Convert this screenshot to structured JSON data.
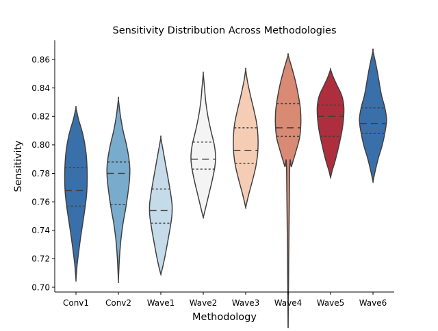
{
  "chart_data": {
    "type": "violin",
    "title": "Sensitivity Distribution Across Methodologies",
    "xlabel": "Methodology",
    "ylabel": "Sensitivity",
    "ylim": [
      0.696,
      0.873
    ],
    "yticks": [
      0.7,
      0.72,
      0.74,
      0.76,
      0.78,
      0.8,
      0.82,
      0.84,
      0.86
    ],
    "ytick_labels": [
      "0.70",
      "0.72",
      "0.74",
      "0.76",
      "0.78",
      "0.80",
      "0.82",
      "0.84",
      "0.86"
    ],
    "categories": [
      "Conv1",
      "Conv2",
      "Wave1",
      "Wave2",
      "Wave3",
      "Wave4",
      "Wave5",
      "Wave6"
    ],
    "grid": false,
    "inner": "quartile",
    "series": [
      {
        "category": "Conv1",
        "color": "#3a70aa",
        "min": 0.705,
        "max": 0.826,
        "q1": 0.757,
        "median": 0.768,
        "q3": 0.784,
        "profile": [
          [
            0.705,
            0.0
          ],
          [
            0.715,
            0.05
          ],
          [
            0.725,
            0.13
          ],
          [
            0.735,
            0.22
          ],
          [
            0.745,
            0.32
          ],
          [
            0.755,
            0.42
          ],
          [
            0.765,
            0.5
          ],
          [
            0.775,
            0.53
          ],
          [
            0.785,
            0.52
          ],
          [
            0.795,
            0.47
          ],
          [
            0.805,
            0.36
          ],
          [
            0.812,
            0.24
          ],
          [
            0.818,
            0.12
          ],
          [
            0.826,
            0.0
          ]
        ]
      },
      {
        "category": "Conv2",
        "color": "#79abcd",
        "min": 0.704,
        "max": 0.832,
        "q1": 0.758,
        "median": 0.78,
        "q3": 0.788,
        "profile": [
          [
            0.704,
            0.0
          ],
          [
            0.715,
            0.03
          ],
          [
            0.725,
            0.07
          ],
          [
            0.735,
            0.13
          ],
          [
            0.745,
            0.22
          ],
          [
            0.755,
            0.34
          ],
          [
            0.765,
            0.44
          ],
          [
            0.775,
            0.52
          ],
          [
            0.783,
            0.54
          ],
          [
            0.79,
            0.5
          ],
          [
            0.8,
            0.38
          ],
          [
            0.81,
            0.22
          ],
          [
            0.82,
            0.1
          ],
          [
            0.832,
            0.0
          ]
        ]
      },
      {
        "category": "Wave1",
        "color": "#c5dbe9",
        "min": 0.709,
        "max": 0.805,
        "q1": 0.745,
        "median": 0.754,
        "q3": 0.769,
        "profile": [
          [
            0.709,
            0.0
          ],
          [
            0.715,
            0.1
          ],
          [
            0.722,
            0.2
          ],
          [
            0.73,
            0.3
          ],
          [
            0.74,
            0.42
          ],
          [
            0.75,
            0.52
          ],
          [
            0.758,
            0.53
          ],
          [
            0.766,
            0.46
          ],
          [
            0.775,
            0.36
          ],
          [
            0.785,
            0.24
          ],
          [
            0.795,
            0.12
          ],
          [
            0.805,
            0.0
          ]
        ]
      },
      {
        "category": "Wave2",
        "color": "#f4f4f4",
        "min": 0.749,
        "max": 0.85,
        "q1": 0.783,
        "median": 0.79,
        "q3": 0.802,
        "profile": [
          [
            0.749,
            0.0
          ],
          [
            0.755,
            0.1
          ],
          [
            0.765,
            0.26
          ],
          [
            0.775,
            0.42
          ],
          [
            0.785,
            0.55
          ],
          [
            0.792,
            0.58
          ],
          [
            0.8,
            0.52
          ],
          [
            0.81,
            0.36
          ],
          [
            0.82,
            0.22
          ],
          [
            0.83,
            0.12
          ],
          [
            0.84,
            0.06
          ],
          [
            0.85,
            0.0
          ]
        ]
      },
      {
        "category": "Wave3",
        "color": "#f5cdb5",
        "min": 0.756,
        "max": 0.853,
        "q1": 0.787,
        "median": 0.796,
        "q3": 0.812,
        "profile": [
          [
            0.756,
            0.0
          ],
          [
            0.765,
            0.14
          ],
          [
            0.775,
            0.32
          ],
          [
            0.785,
            0.48
          ],
          [
            0.795,
            0.57
          ],
          [
            0.805,
            0.58
          ],
          [
            0.815,
            0.52
          ],
          [
            0.825,
            0.38
          ],
          [
            0.835,
            0.22
          ],
          [
            0.845,
            0.08
          ],
          [
            0.853,
            0.0
          ]
        ]
      },
      {
        "category": "Wave4",
        "color": "#d98a75",
        "min": 0.667,
        "max": 0.863,
        "q1": 0.806,
        "median": 0.812,
        "q3": 0.829,
        "profile": [
          [
            0.667,
            0.0
          ],
          [
            0.78,
            0.07
          ],
          [
            0.785,
            0.16
          ],
          [
            0.795,
            0.36
          ],
          [
            0.805,
            0.54
          ],
          [
            0.815,
            0.6
          ],
          [
            0.825,
            0.58
          ],
          [
            0.835,
            0.48
          ],
          [
            0.845,
            0.34
          ],
          [
            0.855,
            0.16
          ],
          [
            0.863,
            0.0
          ]
        ]
      },
      {
        "category": "Wave5",
        "color": "#ae2e3d",
        "min": 0.777,
        "max": 0.853,
        "q1": 0.806,
        "median": 0.82,
        "q3": 0.828,
        "profile": [
          [
            0.777,
            0.0
          ],
          [
            0.782,
            0.08
          ],
          [
            0.79,
            0.24
          ],
          [
            0.8,
            0.4
          ],
          [
            0.81,
            0.54
          ],
          [
            0.82,
            0.62
          ],
          [
            0.828,
            0.62
          ],
          [
            0.835,
            0.52
          ],
          [
            0.842,
            0.3
          ],
          [
            0.848,
            0.12
          ],
          [
            0.853,
            0.0
          ]
        ]
      },
      {
        "category": "Wave6",
        "color": "#3a70aa",
        "min": 0.774,
        "max": 0.866,
        "q1": 0.808,
        "median": 0.815,
        "q3": 0.826,
        "profile": [
          [
            0.774,
            0.0
          ],
          [
            0.78,
            0.08
          ],
          [
            0.79,
            0.24
          ],
          [
            0.8,
            0.44
          ],
          [
            0.81,
            0.58
          ],
          [
            0.818,
            0.64
          ],
          [
            0.826,
            0.56
          ],
          [
            0.835,
            0.4
          ],
          [
            0.845,
            0.28
          ],
          [
            0.855,
            0.16
          ],
          [
            0.866,
            0.0
          ]
        ]
      }
    ]
  }
}
